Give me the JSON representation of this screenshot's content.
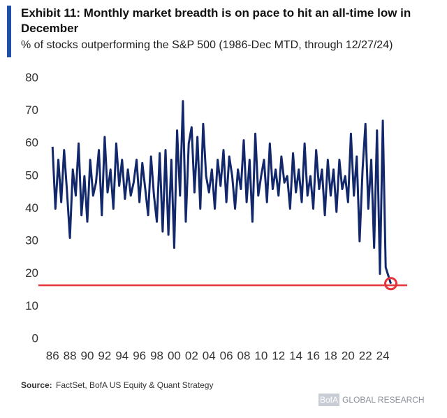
{
  "chart_data": {
    "type": "line",
    "title": "Exhibit 11: Monthly market breadth is on pace to hit an all-time low in December",
    "subtitle": "% of stocks outperforming the S&P 500 (1986-Dec MTD, through 12/27/24)",
    "source_label": "Source:",
    "source": "FactSet, BofA US Equity & Quant Strategy",
    "logo_mark": "BofA",
    "logo_text": "GLOBAL RESEARCH",
    "x": [
      1986,
      1986.33,
      1986.67,
      1987,
      1987.33,
      1987.67,
      1988,
      1988.33,
      1988.67,
      1989,
      1989.33,
      1989.67,
      1990,
      1990.33,
      1990.67,
      1991,
      1991.33,
      1991.67,
      1992,
      1992.33,
      1992.67,
      1993,
      1993.33,
      1993.67,
      1994,
      1994.33,
      1994.67,
      1995,
      1995.33,
      1995.67,
      1996,
      1996.33,
      1996.67,
      1997,
      1997.33,
      1997.67,
      1998,
      1998.33,
      1998.67,
      1999,
      1999.33,
      1999.67,
      2000,
      2000.33,
      2000.67,
      2001,
      2001.33,
      2001.67,
      2002,
      2002.33,
      2002.67,
      2003,
      2003.33,
      2003.67,
      2004,
      2004.33,
      2004.67,
      2005,
      2005.33,
      2005.67,
      2006,
      2006.33,
      2006.67,
      2007,
      2007.33,
      2007.67,
      2008,
      2008.33,
      2008.67,
      2009,
      2009.33,
      2009.67,
      2010,
      2010.33,
      2010.67,
      2011,
      2011.33,
      2011.67,
      2012,
      2012.33,
      2012.67,
      2013,
      2013.33,
      2013.67,
      2014,
      2014.33,
      2014.67,
      2015,
      2015.33,
      2015.67,
      2016,
      2016.33,
      2016.67,
      2017,
      2017.33,
      2017.67,
      2018,
      2018.33,
      2018.67,
      2019,
      2019.33,
      2019.67,
      2020,
      2020.33,
      2020.67,
      2021,
      2021.33,
      2021.67,
      2022,
      2022.33,
      2022.67,
      2023,
      2023.33,
      2023.67,
      2024,
      2024.33,
      2024.92
    ],
    "series": [
      {
        "color": "#13286b",
        "values": [
          59,
          40,
          55,
          42,
          58,
          45,
          31,
          52,
          44,
          60,
          38,
          50,
          36,
          55,
          44,
          48,
          58,
          38,
          62,
          45,
          52,
          40,
          60,
          47,
          55,
          43,
          52,
          44,
          48,
          55,
          42,
          54,
          46,
          38,
          56,
          44,
          36,
          57,
          33,
          58,
          32,
          55,
          28,
          64,
          44,
          73,
          36,
          60,
          65,
          45,
          62,
          40,
          66,
          50,
          45,
          52,
          40,
          55,
          47,
          58,
          42,
          56,
          50,
          40,
          52,
          46,
          61,
          42,
          55,
          36,
          63,
          44,
          50,
          55,
          42,
          60,
          46,
          52,
          44,
          56,
          48,
          50,
          40,
          57,
          45,
          52,
          42,
          60,
          44,
          50,
          40,
          58,
          46,
          52,
          38,
          55,
          44,
          52,
          39,
          55,
          46,
          50,
          42,
          63,
          44,
          56,
          30,
          52,
          66,
          40,
          55,
          28,
          64,
          20,
          67,
          22,
          17
        ]
      }
    ],
    "reference_line": {
      "value": 16.5,
      "color": "#e5333a"
    },
    "xlim": [
      1985.5,
      2026
    ],
    "ylim": [
      0,
      80
    ],
    "yticks": [
      0,
      10,
      20,
      30,
      40,
      50,
      60,
      70,
      80
    ],
    "xticks": [
      {
        "value": 1986,
        "label": "86"
      },
      {
        "value": 1988,
        "label": "88"
      },
      {
        "value": 1990,
        "label": "90"
      },
      {
        "value": 1992,
        "label": "92"
      },
      {
        "value": 1994,
        "label": "94"
      },
      {
        "value": 1996,
        "label": "96"
      },
      {
        "value": 1998,
        "label": "98"
      },
      {
        "value": 2000,
        "label": "00"
      },
      {
        "value": 2002,
        "label": "02"
      },
      {
        "value": 2004,
        "label": "04"
      },
      {
        "value": 2006,
        "label": "06"
      },
      {
        "value": 2008,
        "label": "08"
      },
      {
        "value": 2010,
        "label": "10"
      },
      {
        "value": 2012,
        "label": "12"
      },
      {
        "value": 2014,
        "label": "14"
      },
      {
        "value": 2016,
        "label": "16"
      },
      {
        "value": 2018,
        "label": "18"
      },
      {
        "value": 2020,
        "label": "20"
      },
      {
        "value": 2022,
        "label": "22"
      },
      {
        "value": 2024,
        "label": "24"
      }
    ]
  }
}
